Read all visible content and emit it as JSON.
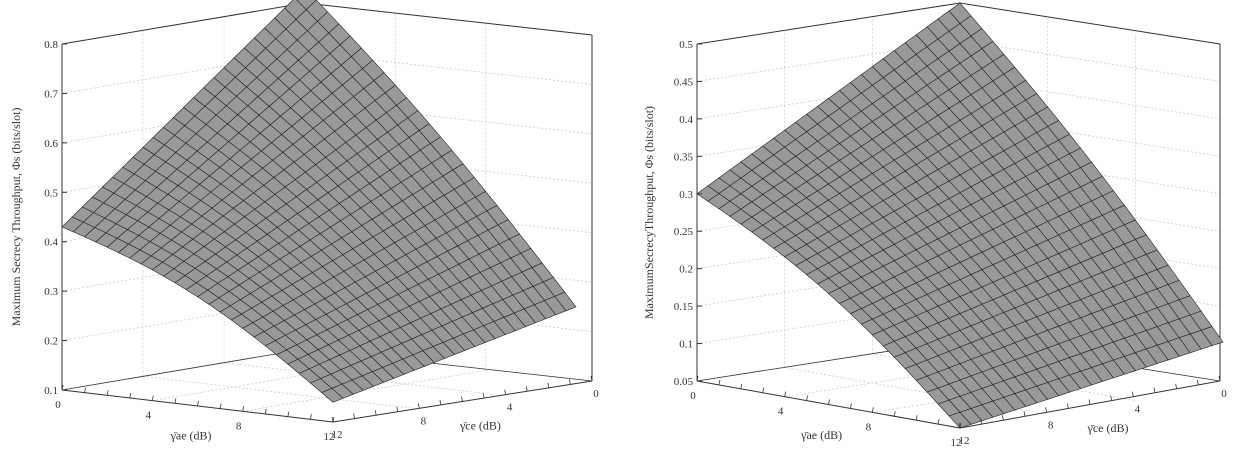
{
  "chart_data": [
    {
      "type": "surface",
      "zlabel": "Maximum Secrecy Throughput, Φs (bits/slot)",
      "xlabel": "γ̄ae (dB)",
      "ylabel": "γ̄ce (dB)",
      "zlim": [
        0.1,
        0.8
      ],
      "z_ticks": [
        "0.1",
        "0.2",
        "0.3",
        "0.4",
        "0.5",
        "0.6",
        "0.7",
        "0.8"
      ],
      "x_ticks": [
        "0",
        "4",
        "8",
        "12"
      ],
      "y_ticks": [
        "12",
        "8",
        "4",
        "0"
      ],
      "x_range": [
        0,
        12
      ],
      "y_range": [
        0,
        12
      ],
      "corners": {
        "ae0_ce0": 0.83,
        "ae0_ce12": 0.43,
        "ae12_ce12": 0.14,
        "ae12_ce0": 0.25
      },
      "surface_color": "#999999",
      "grid": true
    },
    {
      "type": "surface",
      "zlabel": "MaximumSecrecyThroughput, Φs (bits/slot)",
      "xlabel": "γ̄ae (dB)",
      "ylabel": "γ̄ce (dB)",
      "zlim": [
        0.05,
        0.5
      ],
      "z_ticks": [
        "0.05",
        "0.1",
        "0.15",
        "0.2",
        "0.25",
        "0.3",
        "0.35",
        "0.4",
        "0.45",
        "0.5"
      ],
      "x_ticks": [
        "0",
        "4",
        "8",
        "12"
      ],
      "y_ticks": [
        "12",
        "8",
        "4",
        "0"
      ],
      "x_range": [
        0,
        12
      ],
      "y_range": [
        0,
        12
      ],
      "corners": {
        "ae0_ce0": 0.5,
        "ae0_ce12": 0.3,
        "ae12_ce12": 0.05,
        "ae12_ce0": 0.11
      },
      "surface_color": "#999999",
      "grid": true
    }
  ]
}
